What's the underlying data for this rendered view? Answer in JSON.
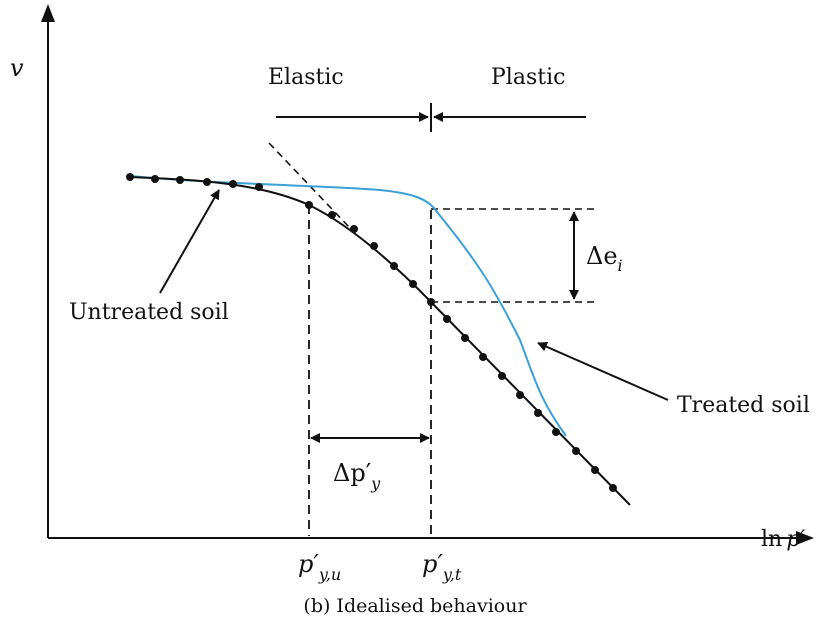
{
  "axes": {
    "y_label": "v",
    "x_label_prefix": "ln",
    "x_label_var": "p′"
  },
  "regions": {
    "elastic": "Elastic",
    "plastic": "Plastic"
  },
  "annotations": {
    "untreated": "Untreated soil",
    "treated": "Treated soil",
    "delta_e_sym": "Δe",
    "delta_e_sub": "i",
    "delta_p_sym": "Δp′",
    "delta_p_sub": "y"
  },
  "ticks": {
    "pyu_main": "p′",
    "pyu_sub": "y,u",
    "pyt_main": "p′",
    "pyt_sub": "y,t"
  },
  "caption": "(b) Idealised behaviour",
  "colors": {
    "untreated": "#111111",
    "treated": "#3ba0d8"
  }
}
